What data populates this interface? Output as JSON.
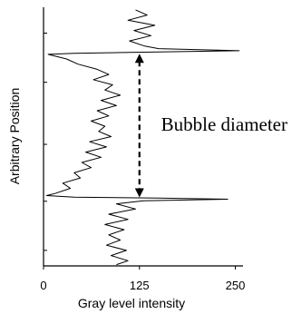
{
  "chart_data": {
    "type": "line",
    "orientation": "vertical-profile",
    "title": "",
    "xlabel": "Gray level intensity",
    "ylabel": "Arbitrary Position",
    "xlim": [
      0,
      260
    ],
    "ylim": [
      0,
      100
    ],
    "x_ticks": [
      {
        "value": 0,
        "label": "0"
      },
      {
        "value": 125,
        "label": "125"
      },
      {
        "value": 250,
        "label": "250"
      }
    ],
    "y_ticks_unlabeled": [
      6,
      25,
      47,
      71,
      90
    ],
    "grid": false,
    "legend": "none",
    "line_color": "#000000",
    "series": [
      {
        "points": [
          {
            "position": 99,
            "intensity": 120
          },
          {
            "position": 97,
            "intensity": 135
          },
          {
            "position": 95,
            "intensity": 110
          },
          {
            "position": 93,
            "intensity": 145
          },
          {
            "position": 91,
            "intensity": 118
          },
          {
            "position": 89,
            "intensity": 140
          },
          {
            "position": 87,
            "intensity": 112
          },
          {
            "position": 85,
            "intensity": 132
          },
          {
            "position": 84,
            "intensity": 150
          },
          {
            "position": 83.2,
            "intensity": 255
          },
          {
            "position": 82.6,
            "intensity": 120
          },
          {
            "position": 82.2,
            "intensity": 40
          },
          {
            "position": 81.8,
            "intensity": 6
          },
          {
            "position": 80,
            "intensity": 30
          },
          {
            "position": 78,
            "intensity": 45
          },
          {
            "position": 76,
            "intensity": 70
          },
          {
            "position": 74,
            "intensity": 85
          },
          {
            "position": 72,
            "intensity": 65
          },
          {
            "position": 70,
            "intensity": 90
          },
          {
            "position": 68,
            "intensity": 80
          },
          {
            "position": 66,
            "intensity": 100
          },
          {
            "position": 64,
            "intensity": 75
          },
          {
            "position": 62,
            "intensity": 95
          },
          {
            "position": 60,
            "intensity": 70
          },
          {
            "position": 58,
            "intensity": 85
          },
          {
            "position": 56,
            "intensity": 62
          },
          {
            "position": 54,
            "intensity": 80
          },
          {
            "position": 52,
            "intensity": 72
          },
          {
            "position": 50,
            "intensity": 88
          },
          {
            "position": 48,
            "intensity": 60
          },
          {
            "position": 46,
            "intensity": 82
          },
          {
            "position": 44,
            "intensity": 55
          },
          {
            "position": 42,
            "intensity": 75
          },
          {
            "position": 40,
            "intensity": 50
          },
          {
            "position": 38,
            "intensity": 62
          },
          {
            "position": 36,
            "intensity": 40
          },
          {
            "position": 34,
            "intensity": 48
          },
          {
            "position": 32,
            "intensity": 25
          },
          {
            "position": 30,
            "intensity": 35
          },
          {
            "position": 28,
            "intensity": 15
          },
          {
            "position": 27.2,
            "intensity": 4
          },
          {
            "position": 26.6,
            "intensity": 40
          },
          {
            "position": 26.2,
            "intensity": 150
          },
          {
            "position": 25.8,
            "intensity": 240
          },
          {
            "position": 25.2,
            "intensity": 130
          },
          {
            "position": 24,
            "intensity": 95
          },
          {
            "position": 22,
            "intensity": 120
          },
          {
            "position": 20,
            "intensity": 85
          },
          {
            "position": 18,
            "intensity": 110
          },
          {
            "position": 16,
            "intensity": 80
          },
          {
            "position": 14,
            "intensity": 105
          },
          {
            "position": 12,
            "intensity": 85
          },
          {
            "position": 10,
            "intensity": 100
          },
          {
            "position": 8,
            "intensity": 82
          },
          {
            "position": 6,
            "intensity": 108
          },
          {
            "position": 4,
            "intensity": 88
          },
          {
            "position": 2,
            "intensity": 110
          },
          {
            "position": 0.5,
            "intensity": 95
          }
        ]
      }
    ],
    "annotations": [
      {
        "text": "Bubble diameter",
        "from_position": 82,
        "to_position": 26.5,
        "at_intensity": 125,
        "style": "dashed double arrow"
      }
    ]
  }
}
